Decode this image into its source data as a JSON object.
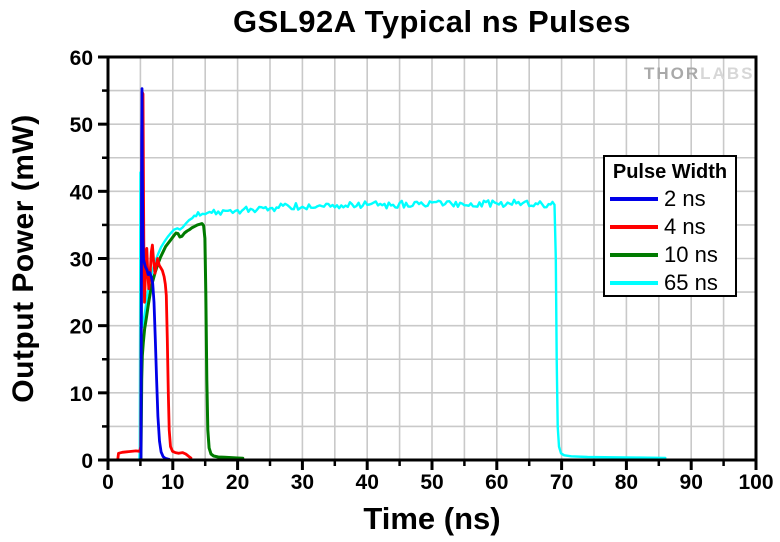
{
  "watermark": {
    "brand_left": "THOR",
    "brand_right": "LABS"
  },
  "chart_data": {
    "type": "line",
    "title": "GSL92A Typical ns Pulses",
    "xlabel": "Time (ns)",
    "ylabel": "Output Power (mW)",
    "xlim": [
      0,
      100
    ],
    "ylim": [
      0,
      60
    ],
    "x_ticks": [
      0,
      10,
      20,
      30,
      40,
      50,
      60,
      70,
      80,
      90,
      100
    ],
    "y_ticks": [
      0,
      10,
      20,
      30,
      40,
      50,
      60
    ],
    "x_minor_step": 5,
    "y_minor_step": 5,
    "grid": {
      "show": true,
      "step_x": 5,
      "step_y": 5,
      "color": "#c9c9c9"
    },
    "axis_color": "#000000",
    "legend": {
      "title": "Pulse Width",
      "position": "upper-right"
    },
    "series": [
      {
        "name": "2 ns",
        "color": "#0000E8",
        "line_width": 2.8,
        "noise": 0.12,
        "points": [
          [
            0,
            0
          ],
          [
            5.02,
            0
          ],
          [
            5.1,
            0.4
          ],
          [
            5.16,
            25
          ],
          [
            5.2,
            48
          ],
          [
            5.24,
            55.3
          ],
          [
            5.3,
            44
          ],
          [
            5.38,
            33
          ],
          [
            5.5,
            29.8
          ],
          [
            5.75,
            28.8
          ],
          [
            6.0,
            28.3
          ],
          [
            6.2,
            27.6
          ],
          [
            6.45,
            27.9
          ],
          [
            6.7,
            27.2
          ],
          [
            6.9,
            26.3
          ],
          [
            7.1,
            23.5
          ],
          [
            7.3,
            18
          ],
          [
            7.5,
            12
          ],
          [
            7.7,
            6.5
          ],
          [
            7.95,
            2.8
          ],
          [
            8.2,
            1.2
          ],
          [
            8.5,
            0.5
          ],
          [
            8.85,
            0.25
          ],
          [
            9.2,
            0.15
          ],
          [
            9.4,
            0.1
          ]
        ]
      },
      {
        "name": "4 ns",
        "color": "#FF0000",
        "line_width": 2.8,
        "noise": 0.3,
        "points": [
          [
            0,
            0
          ],
          [
            1.5,
            0
          ],
          [
            1.62,
            1.0
          ],
          [
            2.2,
            1.15
          ],
          [
            3.2,
            1.25
          ],
          [
            4.3,
            1.35
          ],
          [
            4.9,
            1.3
          ],
          [
            5.05,
            2
          ],
          [
            5.12,
            20
          ],
          [
            5.2,
            46
          ],
          [
            5.26,
            54.8
          ],
          [
            5.4,
            54.5
          ],
          [
            5.48,
            40
          ],
          [
            5.56,
            28
          ],
          [
            5.64,
            23.5
          ],
          [
            5.75,
            27
          ],
          [
            5.88,
            31
          ],
          [
            5.98,
            31.5
          ],
          [
            6.12,
            28
          ],
          [
            6.3,
            25.5
          ],
          [
            6.5,
            27.5
          ],
          [
            6.68,
            31
          ],
          [
            6.85,
            32
          ],
          [
            7.05,
            29.5
          ],
          [
            7.25,
            27.8
          ],
          [
            7.45,
            29
          ],
          [
            7.65,
            30
          ],
          [
            7.9,
            29
          ],
          [
            8.15,
            28.6
          ],
          [
            8.4,
            28.2
          ],
          [
            8.65,
            27.3
          ],
          [
            8.85,
            26.2
          ],
          [
            9.0,
            24.5
          ],
          [
            9.15,
            18
          ],
          [
            9.3,
            10
          ],
          [
            9.45,
            4.5
          ],
          [
            9.65,
            2
          ],
          [
            9.95,
            1.3
          ],
          [
            10.4,
            1.1
          ],
          [
            10.9,
            1.0
          ],
          [
            11.5,
            1.1
          ],
          [
            12.0,
            0.9
          ],
          [
            12.5,
            0.5
          ],
          [
            12.8,
            0.3
          ]
        ]
      },
      {
        "name": "10 ns",
        "color": "#007B00",
        "line_width": 3,
        "noise": 0.15,
        "points": [
          [
            0,
            0
          ],
          [
            5.08,
            0
          ],
          [
            5.14,
            5
          ],
          [
            5.2,
            12
          ],
          [
            5.3,
            15.5
          ],
          [
            5.45,
            17.5
          ],
          [
            5.65,
            19.5
          ],
          [
            5.9,
            21
          ],
          [
            6.2,
            23
          ],
          [
            6.55,
            25
          ],
          [
            6.9,
            26.6
          ],
          [
            7.3,
            28
          ],
          [
            7.7,
            29.2
          ],
          [
            8.1,
            30.2
          ],
          [
            8.5,
            31
          ],
          [
            8.9,
            31.8
          ],
          [
            9.3,
            32.3
          ],
          [
            9.7,
            32.8
          ],
          [
            10.1,
            33.3
          ],
          [
            10.5,
            33.8
          ],
          [
            10.8,
            33.7
          ],
          [
            11.1,
            33.2
          ],
          [
            11.4,
            33.3
          ],
          [
            11.8,
            33.8
          ],
          [
            12.2,
            34.1
          ],
          [
            12.6,
            34.3
          ],
          [
            13.0,
            34.6
          ],
          [
            13.4,
            34.8
          ],
          [
            13.8,
            35.0
          ],
          [
            14.2,
            35.1
          ],
          [
            14.5,
            35.2
          ],
          [
            14.75,
            34.9
          ],
          [
            14.95,
            33
          ],
          [
            15.1,
            25
          ],
          [
            15.25,
            12
          ],
          [
            15.4,
            4.5
          ],
          [
            15.6,
            1.8
          ],
          [
            15.9,
            0.9
          ],
          [
            16.3,
            0.6
          ],
          [
            17,
            0.45
          ],
          [
            18,
            0.4
          ],
          [
            19,
            0.35
          ],
          [
            20,
            0.3
          ],
          [
            20.8,
            0.25
          ]
        ]
      },
      {
        "name": "65 ns",
        "color": "#00FFFF",
        "line_width": 2.4,
        "noise": 0.55,
        "points": [
          [
            0,
            0
          ],
          [
            4.84,
            0
          ],
          [
            4.9,
            2
          ],
          [
            4.96,
            20
          ],
          [
            5.0,
            42.8
          ],
          [
            5.08,
            42.5
          ],
          [
            5.16,
            30
          ],
          [
            5.24,
            21
          ],
          [
            5.34,
            19.8
          ],
          [
            5.5,
            20.5
          ],
          [
            5.65,
            21.5
          ],
          [
            5.85,
            23
          ],
          [
            6.1,
            24.8
          ],
          [
            6.4,
            26.3
          ],
          [
            6.8,
            28
          ],
          [
            7.2,
            29.3
          ],
          [
            7.7,
            30.6
          ],
          [
            8.2,
            31.7
          ],
          [
            8.7,
            32.5
          ],
          [
            9.2,
            33.2
          ],
          [
            9.7,
            33.8
          ],
          [
            10.2,
            34.3
          ],
          [
            10.7,
            34.5
          ],
          [
            11.1,
            34.3
          ],
          [
            11.5,
            34.6
          ],
          [
            12,
            35.2
          ],
          [
            12.5,
            35.7
          ],
          [
            13,
            36
          ],
          [
            13.6,
            36.3
          ],
          [
            14.2,
            36.4
          ],
          [
            15,
            36.6
          ],
          [
            16,
            36.8
          ],
          [
            17,
            37
          ],
          [
            18.5,
            37.1
          ],
          [
            20,
            37.2
          ],
          [
            22,
            37.4
          ],
          [
            24,
            37.5
          ],
          [
            26,
            37.6
          ],
          [
            28,
            37.7
          ],
          [
            30,
            37.7
          ],
          [
            33,
            37.8
          ],
          [
            36,
            37.9
          ],
          [
            40,
            38.0
          ],
          [
            44,
            38.0
          ],
          [
            48,
            38.1
          ],
          [
            52,
            38.1
          ],
          [
            56,
            38.2
          ],
          [
            60,
            38.2
          ],
          [
            63,
            38.2
          ],
          [
            66,
            38.2
          ],
          [
            68,
            38.1
          ],
          [
            68.9,
            38
          ],
          [
            69.1,
            30
          ],
          [
            69.25,
            15
          ],
          [
            69.4,
            5
          ],
          [
            69.6,
            2
          ],
          [
            69.9,
            1
          ],
          [
            70.4,
            0.7
          ],
          [
            71.5,
            0.55
          ],
          [
            74,
            0.45
          ],
          [
            78,
            0.4
          ],
          [
            82,
            0.35
          ],
          [
            86,
            0.3
          ]
        ]
      }
    ]
  }
}
